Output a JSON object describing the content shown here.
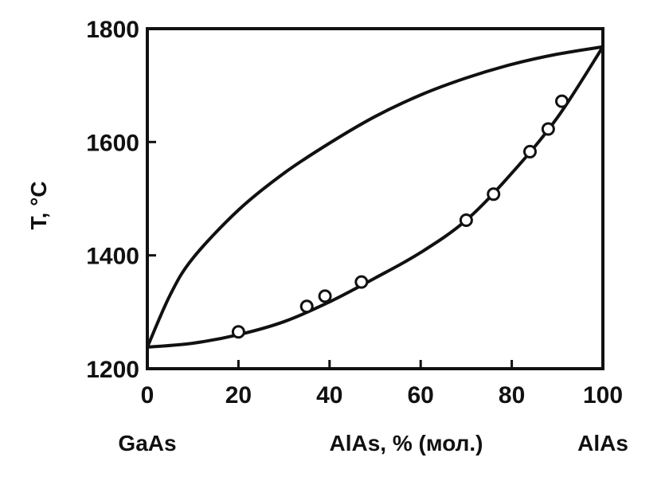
{
  "chart_data": {
    "type": "line",
    "title": "",
    "ylabel": "T, °C",
    "xlabel": "AlAs, % (мол.)",
    "x_end_labels": {
      "left": "GaAs",
      "right": "AlAs"
    },
    "xlim": [
      0,
      100
    ],
    "ylim": [
      1200,
      1800
    ],
    "xticks": [
      0,
      20,
      40,
      60,
      80,
      100
    ],
    "yticks": [
      1200,
      1400,
      1600,
      1800
    ],
    "grid": false,
    "series": [
      {
        "role": "liquidus",
        "x": [
          0,
          5,
          10,
          20,
          30,
          40,
          50,
          60,
          70,
          80,
          90,
          100
        ],
        "y": [
          1238,
          1330,
          1395,
          1480,
          1545,
          1598,
          1645,
          1683,
          1713,
          1737,
          1755,
          1768
        ]
      },
      {
        "role": "solidus",
        "x": [
          0,
          10,
          20,
          30,
          40,
          50,
          60,
          70,
          80,
          90,
          100
        ],
        "y": [
          1238,
          1245,
          1260,
          1283,
          1318,
          1360,
          1405,
          1462,
          1545,
          1643,
          1768
        ]
      },
      {
        "role": "experimental points",
        "x": [
          20,
          35,
          39,
          47,
          70,
          76,
          84,
          88,
          91
        ],
        "y": [
          1265,
          1310,
          1328,
          1353,
          1462,
          1508,
          1583,
          1623,
          1672
        ]
      }
    ]
  }
}
